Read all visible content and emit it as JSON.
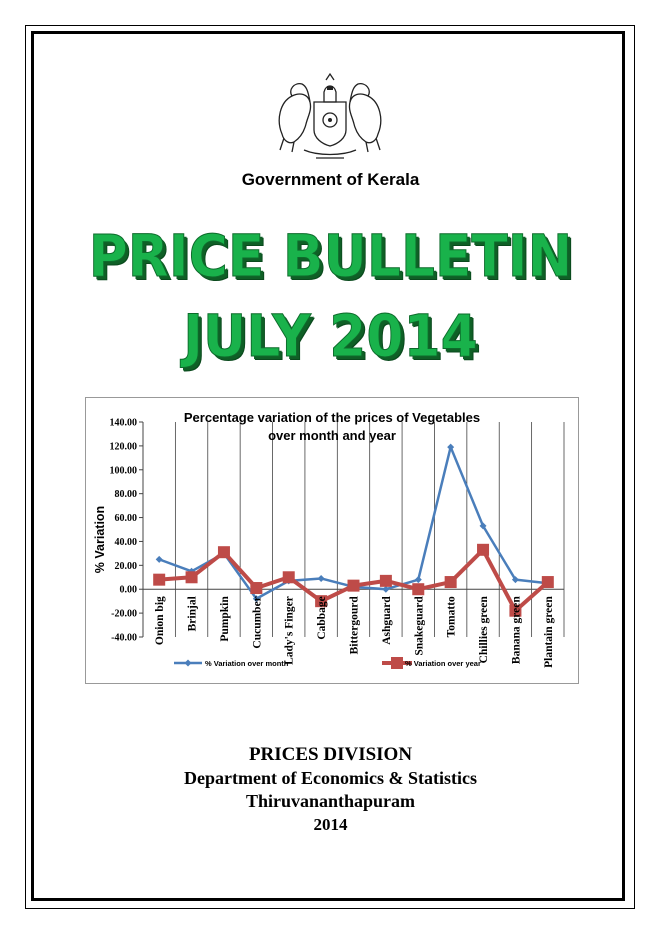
{
  "header": {
    "government": "Government of Kerala"
  },
  "title": {
    "line1": "PRICE BULLETIN",
    "line2": "JULY 2014"
  },
  "chart_data": {
    "type": "line",
    "title": "Percentage variation of the prices of Vegetables over month and year",
    "title_line1": "Percentage variation of the prices of Vegetables",
    "title_line2": "over month and year",
    "ylabel": "% Variation",
    "xlabel": "",
    "ylim": [
      -40,
      140
    ],
    "yticks": [
      "140.00",
      "120.00",
      "100.00",
      "80.00",
      "60.00",
      "40.00",
      "20.00",
      "0.00",
      "-20.00",
      "-40.00"
    ],
    "categories": [
      "Onion big",
      "Brinjal",
      "Pumpkin",
      "Cucumber",
      "Lady's Finger",
      "Cabbage",
      "Bittergourd",
      "Ashguard",
      "Snakeguard",
      "Tomatto",
      "Chillies green",
      "Banana green",
      "Plantain green"
    ],
    "series": [
      {
        "name": "% Variation over month",
        "color": "#4a7ebb",
        "values": [
          25,
          15,
          30,
          -8,
          7,
          9,
          2,
          0,
          8,
          119,
          53,
          8,
          5
        ]
      },
      {
        "name": "% Variation over year",
        "color": "#be4b48",
        "values": [
          8,
          10,
          31,
          1,
          10,
          -10,
          3,
          7,
          0,
          6,
          33,
          -18,
          6
        ]
      }
    ],
    "grid": "vertical",
    "legend": "bottom"
  },
  "footer": {
    "division": "PRICES DIVISION",
    "department": "Department of Economics & Statistics",
    "city": "Thiruvananthapuram",
    "year": "2014"
  }
}
